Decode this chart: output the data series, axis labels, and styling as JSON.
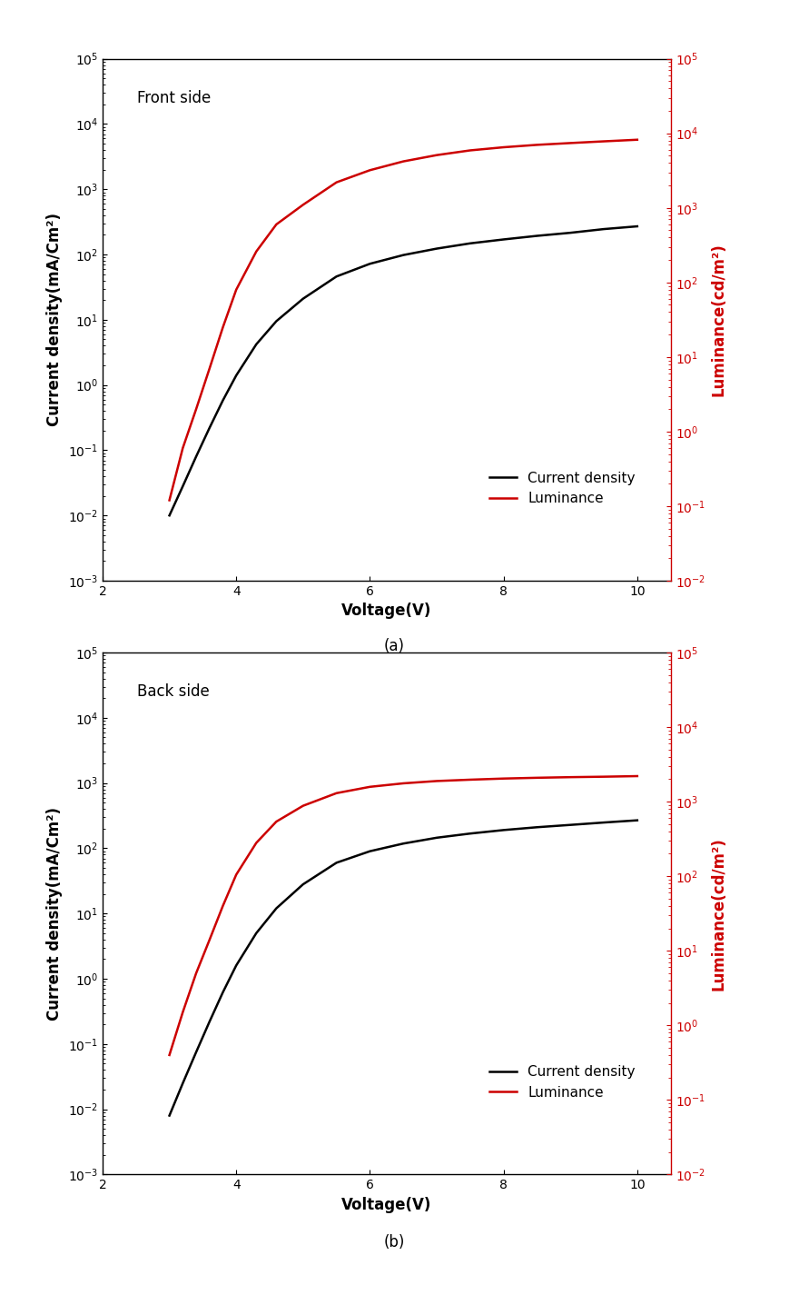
{
  "panel_a": {
    "label": "Front side",
    "subtitle": "(a)",
    "voltage": [
      3.0,
      3.2,
      3.4,
      3.6,
      3.8,
      4.0,
      4.3,
      4.6,
      5.0,
      5.5,
      6.0,
      6.5,
      7.0,
      7.5,
      8.0,
      8.5,
      9.0,
      9.5,
      10.0
    ],
    "current_density": [
      0.01,
      0.028,
      0.08,
      0.22,
      0.58,
      1.4,
      4.2,
      9.5,
      21.0,
      46.0,
      72.0,
      98.0,
      123.0,
      148.0,
      170.0,
      193.0,
      215.0,
      245.0,
      270.0
    ],
    "luminance": [
      0.12,
      0.6,
      2.0,
      7.0,
      25.0,
      80.0,
      260.0,
      600.0,
      1100.0,
      2200.0,
      3200.0,
      4200.0,
      5100.0,
      5900.0,
      6500.0,
      7000.0,
      7400.0,
      7800.0,
      8200.0
    ],
    "ylim_left": [
      0.001,
      100000.0
    ],
    "ylim_right": [
      0.01,
      100000.0
    ],
    "xlim": [
      2,
      10.5
    ]
  },
  "panel_b": {
    "label": "Back side",
    "subtitle": "(b)",
    "voltage": [
      3.0,
      3.2,
      3.4,
      3.6,
      3.8,
      4.0,
      4.3,
      4.6,
      5.0,
      5.5,
      6.0,
      6.5,
      7.0,
      7.5,
      8.0,
      8.5,
      9.0,
      9.5,
      10.0
    ],
    "current_density": [
      0.008,
      0.025,
      0.075,
      0.22,
      0.62,
      1.6,
      5.0,
      12.0,
      28.0,
      60.0,
      90.0,
      118.0,
      145.0,
      168.0,
      190.0,
      210.0,
      228.0,
      248.0,
      268.0
    ],
    "luminance": [
      0.4,
      1.5,
      5.0,
      14.0,
      40.0,
      105.0,
      280.0,
      540.0,
      880.0,
      1300.0,
      1580.0,
      1760.0,
      1890.0,
      1970.0,
      2040.0,
      2090.0,
      2130.0,
      2160.0,
      2200.0
    ],
    "ylim_left": [
      0.001,
      100000.0
    ],
    "ylim_right": [
      0.01,
      100000.0
    ],
    "xlim": [
      2,
      10.5
    ]
  },
  "current_density_color": "#000000",
  "luminance_color": "#cc0000",
  "current_density_label": "Current density",
  "luminance_label": "Luminance",
  "xlabel": "Voltage(V)",
  "ylabel_left": "Current density(mA/Cm²)",
  "ylabel_right": "Luminance(cd/m²)",
  "line_width": 1.8,
  "legend_fontsize": 11,
  "label_fontsize": 12,
  "tick_fontsize": 10,
  "panel_label_fontsize": 12,
  "subtitle_fontsize": 12,
  "background_color": "#ffffff"
}
